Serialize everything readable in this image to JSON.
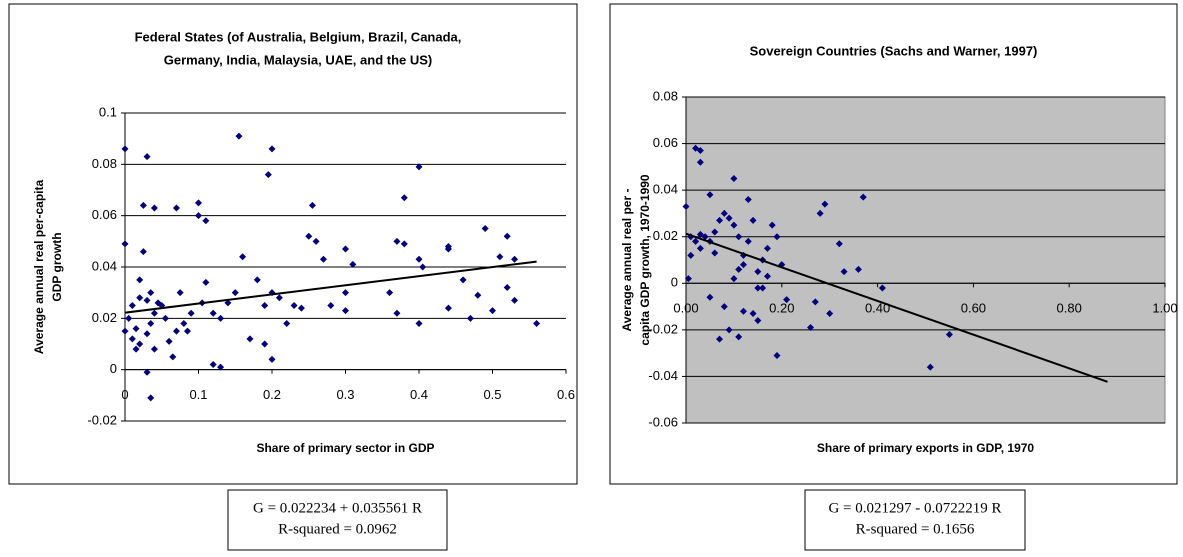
{
  "chart_data": [
    {
      "type": "scatter",
      "title": [
        "Federal States (of Australia, Belgium, Brazil, Canada,",
        "Germany, India, Malaysia, UAE, and the US)"
      ],
      "x_label": "Share of primary sector in GDP",
      "y_label": [
        "Average annual real per-capita",
        "GDP growth"
      ],
      "color": "#000080",
      "background": "#ffffff",
      "grid": true,
      "xlim": [
        0,
        0.6
      ],
      "ylim": [
        -0.02,
        0.1
      ],
      "xticks": [
        0,
        0.1,
        0.2,
        0.3,
        0.4,
        0.5,
        0.6
      ],
      "yticks": [
        -0.02,
        0,
        0.02,
        0.04,
        0.06,
        0.08,
        0.1
      ],
      "x": [
        0,
        0.03,
        0.155,
        0.2,
        0.195,
        0.4,
        0,
        0.04,
        0.025,
        0.07,
        0.1,
        0.1,
        0.11,
        0.025,
        0.255,
        0.38,
        0.38,
        0.37,
        0.4,
        0.405,
        0.44,
        0.49,
        0.52,
        0.51,
        0.53,
        0.56,
        0.3,
        0.31,
        0.27,
        0.25,
        0.26,
        0.44,
        0.47,
        0.48,
        0.52,
        0.53,
        0.5,
        0.4,
        0.37,
        0.36,
        0.3,
        0.3,
        0.23,
        0.22,
        0.2,
        0.19,
        0.17,
        0.2,
        0.18,
        0.15,
        0.16,
        0.13,
        0.12,
        0.11,
        0.105,
        0.09,
        0.08,
        0.07,
        0.06,
        0.05,
        0.04,
        0.035,
        0.03,
        0.02,
        0.015,
        0.01,
        0.005,
        0,
        0.01,
        0.02,
        0.03,
        0.035,
        0.04,
        0.03,
        0.035,
        0.045,
        0.055,
        0.065,
        0.075,
        0.085,
        0.12,
        0.13,
        0.14,
        0.19,
        0.21,
        0.24,
        0.28,
        0.44,
        0.46,
        0.02,
        0.015
      ],
      "y": [
        0.086,
        0.083,
        0.091,
        0.086,
        0.076,
        0.079,
        0.049,
        0.063,
        0.064,
        0.063,
        0.065,
        0.06,
        0.058,
        0.046,
        0.064,
        0.067,
        0.049,
        0.05,
        0.043,
        0.04,
        0.048,
        0.055,
        0.052,
        0.044,
        0.043,
        0.018,
        0.047,
        0.041,
        0.043,
        0.052,
        0.05,
        0.047,
        0.02,
        0.029,
        0.032,
        0.027,
        0.023,
        0.018,
        0.022,
        0.03,
        0.03,
        0.023,
        0.025,
        0.018,
        0.004,
        0.01,
        0.012,
        0.03,
        0.035,
        0.03,
        0.044,
        0.02,
        0.022,
        0.034,
        0.026,
        0.022,
        0.018,
        0.015,
        0.011,
        0.025,
        0.022,
        0.018,
        0.014,
        0.01,
        0.008,
        0.012,
        0.02,
        0.015,
        0.025,
        0.028,
        0.027,
        0.03,
        0.008,
        -0.001,
        -0.011,
        0.026,
        0.02,
        0.005,
        0.03,
        0.015,
        0.002,
        0.001,
        0.026,
        0.025,
        0.028,
        0.024,
        0.025,
        0.024,
        0.035,
        0.035,
        0.016
      ],
      "trendline": {
        "x": [
          0,
          0.56
        ],
        "y": [
          0.0222,
          0.0421
        ],
        "color": "#000000"
      },
      "annotations": [
        "G = 0.022234 + 0.035561 R",
        "R-squared = 0.0962"
      ]
    },
    {
      "type": "scatter",
      "title": [
        "Sovereign Countries (Sachs and Warner, 1997)"
      ],
      "x_label": "Share of primary exports in GDP, 1970",
      "y_label": [
        "Average annual real per -",
        "capita GDP growth, 1970-1990"
      ],
      "color": "#000080",
      "background": "#c0c0c0",
      "grid": true,
      "xlim": [
        0,
        1
      ],
      "ylim": [
        -0.06,
        0.08
      ],
      "xticks": [
        {
          "value": 0,
          "label": "0.00"
        },
        {
          "value": 0.2,
          "label": "0.20"
        },
        {
          "value": 0.4,
          "label": "0.40"
        },
        {
          "value": 0.6,
          "label": "0.60"
        },
        {
          "value": 0.8,
          "label": "0.80"
        },
        {
          "value": 1,
          "label": "1.00"
        }
      ],
      "yticks": [
        -0.06,
        -0.04,
        -0.02,
        0,
        0.02,
        0.04,
        0.06,
        0.08
      ],
      "x": [
        0.02,
        0.03,
        0.03,
        0,
        0.01,
        0.02,
        0.03,
        0.04,
        0.05,
        0.06,
        0.07,
        0.08,
        0.09,
        0.1,
        0.1,
        0.11,
        0.12,
        0.13,
        0.14,
        0.15,
        0.16,
        0.17,
        0.18,
        0.19,
        0.2,
        0.08,
        0.09,
        0.07,
        0.11,
        0.12,
        0.14,
        0.15,
        0.17,
        0.19,
        0.21,
        0.26,
        0.27,
        0.28,
        0.29,
        0.3,
        0.32,
        0.33,
        0.36,
        0.37,
        0.41,
        0.51,
        0.55,
        0.01,
        0.05,
        0.06,
        0.1,
        0.12,
        0.15,
        0.005,
        0.03,
        0.13,
        0.16,
        0.05,
        0.11
      ],
      "y": [
        0.058,
        0.057,
        0.052,
        0.033,
        0.02,
        0.018,
        0.015,
        0.02,
        0.038,
        0.022,
        0.027,
        0.03,
        0.028,
        0.025,
        0.045,
        0.02,
        0.012,
        0.036,
        0.027,
        0.005,
        0.01,
        0.015,
        0.025,
        0.02,
        0.008,
        -0.01,
        -0.02,
        -0.024,
        -0.023,
        -0.012,
        -0.013,
        -0.016,
        0.003,
        -0.031,
        -0.007,
        -0.019,
        -0.008,
        0.03,
        0.034,
        -0.013,
        0.017,
        0.005,
        0.006,
        0.037,
        -0.002,
        -0.036,
        -0.022,
        0.012,
        0.018,
        0.013,
        0.002,
        0.008,
        -0.002,
        0.002,
        0.021,
        0.018,
        -0.002,
        -0.006,
        0.006
      ],
      "trendline": {
        "x": [
          0,
          0.88
        ],
        "y": [
          0.0213,
          -0.0423
        ],
        "color": "#000000"
      },
      "annotations": [
        "G = 0.021297 - 0.0722219 R",
        "R-squared = 0.1656"
      ]
    }
  ]
}
